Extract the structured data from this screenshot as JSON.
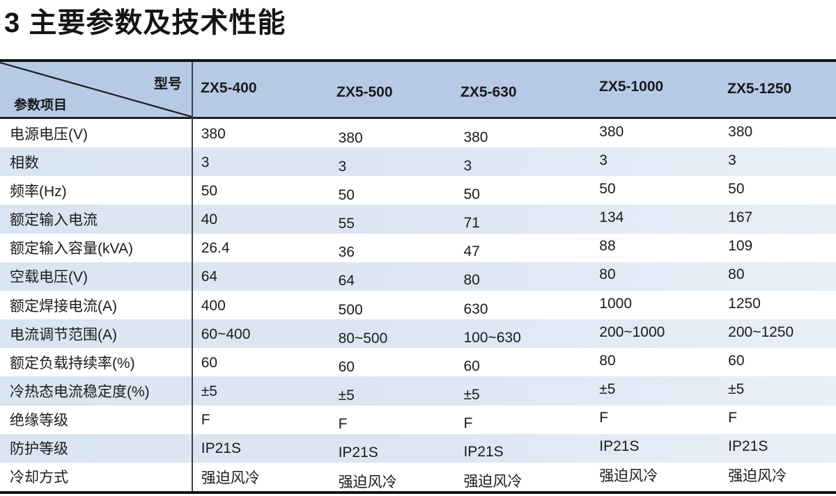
{
  "page": {
    "title": "3 主要参数及技术性能"
  },
  "table": {
    "corner": {
      "top_right_label": "型号",
      "bottom_left_label": "参数项目"
    },
    "models": [
      "ZX5-400",
      "ZX5-500",
      "ZX5-630",
      "ZX5-1000",
      "ZX5-1250"
    ],
    "rows": [
      {
        "label": "电源电压(V)",
        "values": [
          "380",
          "380",
          "380",
          "380",
          "380"
        ]
      },
      {
        "label": "相数",
        "values": [
          "3",
          "3",
          "3",
          "3",
          "3"
        ]
      },
      {
        "label": "频率(Hz)",
        "values": [
          "50",
          "50",
          "50",
          "50",
          "50"
        ]
      },
      {
        "label": "额定输入电流",
        "values": [
          "40",
          "55",
          "71",
          "134",
          "167"
        ]
      },
      {
        "label": "额定输入容量(kVA)",
        "values": [
          "26.4",
          "36",
          "47",
          "88",
          "109"
        ]
      },
      {
        "label": "空载电压(V)",
        "values": [
          "64",
          "64",
          "80",
          "80",
          "80"
        ]
      },
      {
        "label": "额定焊接电流(A)",
        "values": [
          "400",
          "500",
          "630",
          "1000",
          "1250"
        ]
      },
      {
        "label": "电流调节范围(A)",
        "values": [
          "60~400",
          "80~500",
          "100~630",
          "200~1000",
          "200~1250"
        ]
      },
      {
        "label": "额定负载持续率(%)",
        "values": [
          "60",
          "60",
          "60",
          "80",
          "60"
        ]
      },
      {
        "label": "冷热态电流稳定度(%)",
        "values": [
          "±5",
          "±5",
          "±5",
          "±5",
          "±5"
        ]
      },
      {
        "label": "绝缘等级",
        "values": [
          "F",
          "F",
          "F",
          "F",
          "F"
        ]
      },
      {
        "label": "防护等级",
        "values": [
          "IP21S",
          "IP21S",
          "IP21S",
          "IP21S",
          "IP21S"
        ]
      },
      {
        "label": "冷却方式",
        "values": [
          "强迫风冷",
          "强迫风冷",
          "强迫风冷",
          "强迫风冷",
          "强迫风冷"
        ]
      }
    ],
    "colors": {
      "header_bg": "#B6CAE6",
      "stripe_bg": "#DCE6F2",
      "border_dark": "#131313",
      "header_underline": "#1E1E26",
      "column_divider": "#3F3F45",
      "text": "#1B1B1B"
    }
  }
}
